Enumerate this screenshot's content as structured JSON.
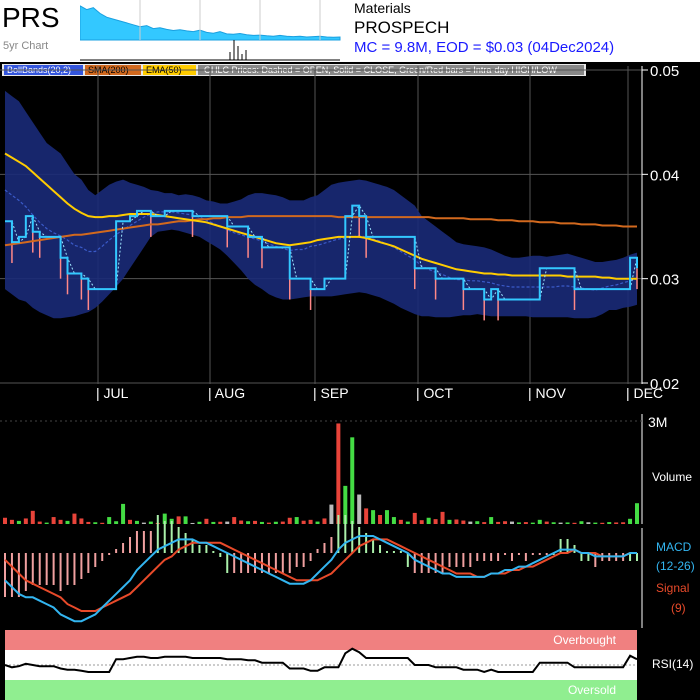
{
  "header": {
    "ticker": "PRS",
    "subtitle": "5yr Chart",
    "sector": "Materials",
    "company": "PROSPECH",
    "mc_line": "MC = 9.8M, EOD = $0.03 (04Dec2024)"
  },
  "legend": {
    "bollinger": "BollBands(20,2)",
    "sma": "SMA(200)",
    "ema": "EMA(50)",
    "ohlc_note": "OHLC Prices: Dashed = OPEN, Solid = CLOSE, Green/Red bars = Intra-day HIGH/LOW"
  },
  "panel_labels": {
    "volume": "Volume",
    "volume_max": "3M",
    "macd": "MACD",
    "macd_params": "(12-26)",
    "signal": "Signal",
    "signal_params": "(9)",
    "rsi": "RSI(14)",
    "overbought": "Overbought",
    "oversold": "Oversold"
  },
  "colors": {
    "price": "#33c8ff",
    "bollinger_fill": "#1a2a78",
    "sma": "#d2691e",
    "ema": "#ffcc00",
    "macd": "#33b5f0",
    "signal": "#e84a2a",
    "overbought": "#f08080",
    "oversold": "#90ee90",
    "up": "#44dd44",
    "down": "#ff4444"
  },
  "chart_data": {
    "type": "line",
    "y_ticks": [
      "0.05",
      "0.04",
      "0.03",
      "0.02"
    ],
    "ylim": [
      0.02,
      0.05
    ],
    "months": [
      "| JUL",
      "| AUG",
      "| SEP",
      "| OCT",
      "| NOV",
      "| DEC"
    ],
    "close": [
      0.0355,
      0.0335,
      0.034,
      0.036,
      0.0345,
      0.034,
      0.034,
      0.034,
      0.032,
      0.0305,
      0.0305,
      0.03,
      0.029,
      0.029,
      0.029,
      0.029,
      0.0355,
      0.0355,
      0.036,
      0.0365,
      0.0365,
      0.036,
      0.036,
      0.0365,
      0.0365,
      0.0365,
      0.0365,
      0.036,
      0.036,
      0.036,
      0.036,
      0.036,
      0.035,
      0.035,
      0.035,
      0.034,
      0.034,
      0.033,
      0.033,
      0.033,
      0.033,
      0.03,
      0.03,
      0.03,
      0.029,
      0.029,
      0.03,
      0.03,
      0.03,
      0.036,
      0.037,
      0.036,
      0.034,
      0.034,
      0.034,
      0.034,
      0.034,
      0.034,
      0.034,
      0.031,
      0.031,
      0.031,
      0.03,
      0.03,
      0.03,
      0.03,
      0.029,
      0.029,
      0.029,
      0.028,
      0.029,
      0.028,
      0.028,
      0.028,
      0.028,
      0.028,
      0.028,
      0.031,
      0.031,
      0.031,
      0.031,
      0.031,
      0.029,
      0.029,
      0.029,
      0.029,
      0.029,
      0.029,
      0.029,
      0.029,
      0.032,
      0.031
    ],
    "sma200": [
      0.0332,
      0.0333,
      0.0334,
      0.0335,
      0.0336,
      0.0337,
      0.0338,
      0.0339,
      0.034,
      0.0341,
      0.0342,
      0.0342,
      0.0343,
      0.0344,
      0.0345,
      0.0346,
      0.0347,
      0.0348,
      0.0349,
      0.035,
      0.0351,
      0.0352,
      0.0352,
      0.0353,
      0.0354,
      0.0355,
      0.0355,
      0.0356,
      0.0357,
      0.0357,
      0.0358,
      0.0358,
      0.0359,
      0.0359,
      0.0359,
      0.036,
      0.036,
      0.036,
      0.036,
      0.036,
      0.036,
      0.036,
      0.036,
      0.036,
      0.036,
      0.036,
      0.036,
      0.036,
      0.0359,
      0.0359,
      0.0359,
      0.0359,
      0.0359,
      0.0359,
      0.0359,
      0.0359,
      0.0359,
      0.0359,
      0.0359,
      0.0359,
      0.0359,
      0.0359,
      0.0358,
      0.0358,
      0.0358,
      0.0358,
      0.0358,
      0.0357,
      0.0357,
      0.0357,
      0.0357,
      0.0356,
      0.0356,
      0.0356,
      0.0355,
      0.0355,
      0.0355,
      0.0354,
      0.0354,
      0.0354,
      0.0353,
      0.0353,
      0.0353,
      0.0352,
      0.0352,
      0.0352,
      0.0351,
      0.0351,
      0.0351,
      0.035,
      0.035,
      0.035
    ],
    "ema50": [
      0.042,
      0.0416,
      0.0412,
      0.0408,
      0.0402,
      0.0396,
      0.039,
      0.0384,
      0.0378,
      0.0372,
      0.0367,
      0.0363,
      0.036,
      0.0359,
      0.0359,
      0.036,
      0.036,
      0.0361,
      0.0362,
      0.0362,
      0.0362,
      0.0362,
      0.0361,
      0.036,
      0.0359,
      0.0358,
      0.0357,
      0.0356,
      0.0355,
      0.0354,
      0.0352,
      0.035,
      0.0348,
      0.0346,
      0.0344,
      0.0342,
      0.034,
      0.0338,
      0.0336,
      0.0334,
      0.0333,
      0.0332,
      0.0333,
      0.0334,
      0.0335,
      0.0337,
      0.0338,
      0.0339,
      0.034,
      0.034,
      0.034,
      0.034,
      0.0339,
      0.0337,
      0.0335,
      0.0333,
      0.0331,
      0.0328,
      0.0325,
      0.0322,
      0.0319,
      0.0317,
      0.0315,
      0.0313,
      0.0311,
      0.0309,
      0.0308,
      0.0307,
      0.0306,
      0.0305,
      0.0305,
      0.0304,
      0.0304,
      0.0303,
      0.0303,
      0.0303,
      0.0303,
      0.0303,
      0.0303,
      0.0303,
      0.0303,
      0.0302,
      0.0302,
      0.0302,
      0.0302,
      0.0302,
      0.0301,
      0.0301,
      0.03,
      0.03,
      0.03,
      0.03
    ],
    "boll_upper": [
      0.048,
      0.0475,
      0.047,
      0.046,
      0.045,
      0.044,
      0.043,
      0.0425,
      0.042,
      0.041,
      0.04,
      0.0395,
      0.0385,
      0.038,
      0.0385,
      0.039,
      0.0393,
      0.0395,
      0.0392,
      0.039,
      0.0388,
      0.0385,
      0.0384,
      0.0382,
      0.0382,
      0.038,
      0.0381,
      0.038,
      0.0378,
      0.0375,
      0.0374,
      0.0372,
      0.0372,
      0.0374,
      0.0376,
      0.038,
      0.0382,
      0.0382,
      0.0381,
      0.038,
      0.0378,
      0.0375,
      0.0375,
      0.0375,
      0.0378,
      0.038,
      0.0385,
      0.039,
      0.0392,
      0.0393,
      0.0394,
      0.0395,
      0.0394,
      0.0392,
      0.039,
      0.0388,
      0.0385,
      0.038,
      0.0375,
      0.037,
      0.036,
      0.0355,
      0.035,
      0.0345,
      0.034,
      0.0335,
      0.0333,
      0.0332,
      0.0331,
      0.033,
      0.0328,
      0.0325,
      0.0322,
      0.032,
      0.032,
      0.0321,
      0.0322,
      0.0322,
      0.0321,
      0.0322,
      0.0323,
      0.0324,
      0.0322,
      0.032,
      0.0318,
      0.0316,
      0.0316,
      0.0317,
      0.0318,
      0.032,
      0.0323,
      0.0325
    ],
    "boll_lower": [
      0.029,
      0.0285,
      0.028,
      0.0278,
      0.0272,
      0.0268,
      0.0265,
      0.0262,
      0.0262,
      0.0263,
      0.0264,
      0.0266,
      0.0268,
      0.0272,
      0.0278,
      0.0285,
      0.0292,
      0.03,
      0.031,
      0.032,
      0.033,
      0.034,
      0.0345,
      0.0346,
      0.0347,
      0.0346,
      0.0344,
      0.0342,
      0.034,
      0.0336,
      0.0332,
      0.0328,
      0.0322,
      0.0315,
      0.0308,
      0.03,
      0.0294,
      0.029,
      0.0285,
      0.0282,
      0.028,
      0.028,
      0.0281,
      0.0282,
      0.0283,
      0.0283,
      0.0283,
      0.0283,
      0.0284,
      0.0285,
      0.0286,
      0.0287,
      0.0286,
      0.0284,
      0.0282,
      0.0279,
      0.0276,
      0.0272,
      0.0269,
      0.0266,
      0.0264,
      0.0264,
      0.0263,
      0.0263,
      0.0263,
      0.0264,
      0.0265,
      0.0265,
      0.0266,
      0.0265,
      0.0264,
      0.0264,
      0.0264,
      0.0264,
      0.0264,
      0.0264,
      0.0263,
      0.0263,
      0.0263,
      0.0263,
      0.0263,
      0.0263,
      0.0262,
      0.0262,
      0.0262,
      0.0263,
      0.0266,
      0.027,
      0.027,
      0.0272,
      0.0273,
      0.0275
    ],
    "boll_mid": [
      0.0385,
      0.038,
      0.0375,
      0.0369,
      0.0361,
      0.0354,
      0.0348,
      0.0344,
      0.0341,
      0.0337,
      0.0332,
      0.033,
      0.0326,
      0.0326,
      0.0331,
      0.0337,
      0.0342,
      0.0347,
      0.0351,
      0.0355,
      0.0359,
      0.0362,
      0.0364,
      0.0364,
      0.0364,
      0.0363,
      0.0362,
      0.0361,
      0.0359,
      0.0356,
      0.0353,
      0.035,
      0.0347,
      0.0344,
      0.0342,
      0.034,
      0.0338,
      0.0336,
      0.0333,
      0.0331,
      0.0329,
      0.0327,
      0.0328,
      0.0328,
      0.0331,
      0.0332,
      0.0334,
      0.0336,
      0.0338,
      0.0339,
      0.034,
      0.0341,
      0.034,
      0.0338,
      0.0336,
      0.0333,
      0.033,
      0.0326,
      0.0322,
      0.0318,
      0.0312,
      0.0309,
      0.0306,
      0.0304,
      0.0301,
      0.0299,
      0.0299,
      0.0298,
      0.0298,
      0.0297,
      0.0296,
      0.0294,
      0.0293,
      0.0292,
      0.0292,
      0.0292,
      0.0292,
      0.0292,
      0.0292,
      0.0292,
      0.0293,
      0.0293,
      0.0292,
      0.0291,
      0.029,
      0.0289,
      0.0291,
      0.0293,
      0.0294,
      0.0296,
      0.0298,
      0.03
    ],
    "volume_max": 3000000,
    "volume": [
      180000,
      120000,
      90000,
      160000,
      380000,
      70000,
      40000,
      200000,
      120000,
      90000,
      300000,
      160000,
      60000,
      50000,
      35000,
      200000,
      80000,
      580000,
      120000,
      90000,
      40000,
      70000,
      30000,
      300000,
      150000,
      220000,
      220000,
      30000,
      65000,
      150000,
      60000,
      65000,
      70000,
      200000,
      100000,
      80000,
      90000,
      60000,
      40000,
      65000,
      70000,
      180000,
      200000,
      95000,
      120000,
      70000,
      160000,
      560000,
      2900000,
      1100000,
      2500000,
      850000,
      450000,
      400000,
      260000,
      400000,
      200000,
      120000,
      70000,
      320000,
      110000,
      180000,
      140000,
      350000,
      120000,
      130000,
      100000,
      70000,
      80000,
      55000,
      200000,
      60000,
      80000,
      70000,
      45000,
      55000,
      40000,
      120000,
      70000,
      50000,
      40000,
      45000,
      35000,
      80000,
      50000,
      40000,
      35000,
      55000,
      45000,
      50000,
      150000,
      600000
    ],
    "volume_dir": [
      "d",
      "d",
      "u",
      "d",
      "d",
      "d",
      "u",
      "d",
      "d",
      "u",
      "d",
      "d",
      "d",
      "u",
      "d",
      "u",
      "u",
      "u",
      "d",
      "u",
      "n",
      "u",
      "d",
      "u",
      "u",
      "d",
      "u",
      "n",
      "u",
      "d",
      "u",
      "d",
      "n",
      "d",
      "d",
      "u",
      "d",
      "u",
      "d",
      "u",
      "d",
      "d",
      "u",
      "d",
      "d",
      "u",
      "d",
      "n",
      "d",
      "u",
      "u",
      "n",
      "d",
      "u",
      "d",
      "u",
      "u",
      "d",
      "u",
      "d",
      "d",
      "u",
      "d",
      "d",
      "u",
      "d",
      "d",
      "n",
      "u",
      "d",
      "u",
      "d",
      "d",
      "n",
      "u",
      "d",
      "u",
      "u",
      "d",
      "u",
      "n",
      "u",
      "d",
      "u",
      "n",
      "u",
      "d",
      "u",
      "d",
      "d",
      "u",
      "u"
    ],
    "macd": [
      -0.0008,
      -0.001,
      -0.0012,
      -0.0013,
      -0.0013,
      -0.0014,
      -0.0015,
      -0.0016,
      -0.0018,
      -0.0019,
      -0.002,
      -0.002,
      -0.0019,
      -0.0018,
      -0.0016,
      -0.0014,
      -0.0012,
      -0.001,
      -0.0008,
      -0.0005,
      -0.0003,
      -0.0001,
      0.0001,
      0.0002,
      0.0003,
      0.0004,
      0.0004,
      0.0004,
      0.0003,
      0.0003,
      0.0002,
      0.0001,
      0,
      -0.0001,
      -0.0002,
      -0.0003,
      -0.0004,
      -0.0005,
      -0.0006,
      -0.0007,
      -0.0008,
      -0.0009,
      -0.0009,
      -0.0009,
      -0.0008,
      -0.0006,
      -0.0004,
      -0.0002,
      0.0001,
      0.0003,
      0.0004,
      0.0005,
      0.0005,
      0.0005,
      0.0004,
      0.0003,
      0.0002,
      0.0001,
      0,
      -0.0002,
      -0.0003,
      -0.0004,
      -0.0005,
      -0.0006,
      -0.0006,
      -0.0007,
      -0.0007,
      -0.0007,
      -0.0007,
      -0.0007,
      -0.0006,
      -0.0006,
      -0.0005,
      -0.0005,
      -0.0004,
      -0.0004,
      -0.0003,
      -0.0002,
      -0.0001,
      0,
      0.0001,
      0.0001,
      0.0001,
      0,
      0,
      -0.0001,
      -0.0001,
      -0.0001,
      -0.0001,
      -0.0001,
      0,
      0
    ],
    "signal": [
      -0.0002,
      -0.0004,
      -0.0006,
      -0.0008,
      -0.0009,
      -0.001,
      -0.0011,
      -0.0012,
      -0.0013,
      -0.0015,
      -0.0016,
      -0.0017,
      -0.0017,
      -0.0017,
      -0.0016,
      -0.0015,
      -0.0014,
      -0.0013,
      -0.0012,
      -0.001,
      -0.0008,
      -0.0006,
      -0.0004,
      -0.0002,
      -0.0001,
      0.0001,
      0.0002,
      0.0003,
      0.0003,
      0.0003,
      0.0003,
      0.0003,
      0.0002,
      0.0001,
      0,
      -0.0001,
      -0.0002,
      -0.0003,
      -0.0004,
      -0.0005,
      -0.0006,
      -0.0007,
      -0.0008,
      -0.0008,
      -0.0008,
      -0.0008,
      -0.0007,
      -0.0006,
      -0.0004,
      -0.0002,
      0,
      0.0002,
      0.0003,
      0.0004,
      0.0004,
      0.0004,
      0.0003,
      0.0002,
      0.0001,
      0,
      -0.0001,
      -0.0002,
      -0.0003,
      -0.0004,
      -0.0005,
      -0.0006,
      -0.0006,
      -0.0006,
      -0.0007,
      -0.0007,
      -0.0006,
      -0.0006,
      -0.0006,
      -0.0005,
      -0.0005,
      -0.0004,
      -0.0004,
      -0.0003,
      -0.0002,
      -0.0001,
      0,
      0,
      0.0001,
      0,
      0,
      0,
      -0.0001,
      -0.0001,
      -0.0001,
      -0.0001,
      0,
      0
    ],
    "rsi": [
      50,
      48,
      49,
      51,
      50,
      49,
      49,
      49,
      47,
      46,
      46,
      45,
      44,
      44,
      44,
      44,
      55,
      55,
      56,
      57,
      57,
      56,
      56,
      57,
      57,
      57,
      57,
      56,
      56,
      56,
      56,
      56,
      55,
      55,
      55,
      54,
      54,
      52,
      52,
      52,
      52,
      47,
      47,
      47,
      45,
      45,
      48,
      48,
      48,
      60,
      64,
      61,
      56,
      56,
      56,
      56,
      56,
      56,
      56,
      50,
      50,
      50,
      48,
      48,
      48,
      48,
      46,
      46,
      46,
      44,
      46,
      44,
      44,
      44,
      44,
      44,
      44,
      52,
      52,
      52,
      52,
      52,
      48,
      48,
      48,
      48,
      48,
      48,
      48,
      48,
      58,
      55
    ],
    "sparkline": [
      0.9,
      0.8,
      0.85,
      0.7,
      0.6,
      0.55,
      0.5,
      0.45,
      0.4,
      0.35,
      0.38,
      0.3,
      0.32,
      0.28,
      0.25,
      0.27,
      0.24,
      0.22,
      0.26,
      0.2,
      0.18,
      0.22,
      0.16,
      0.15,
      0.17,
      0.14,
      0.12,
      0.13,
      0.11,
      0.1,
      0.12,
      0.1,
      0.09,
      0.1,
      0.08,
      0.09,
      0.1,
      0.08,
      0.07,
      0.08
    ]
  }
}
